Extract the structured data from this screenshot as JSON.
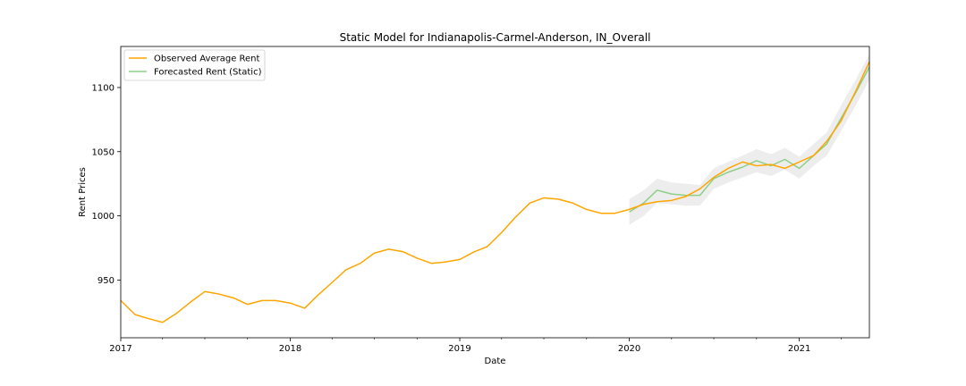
{
  "chart_data": {
    "type": "line",
    "title": "Static Model for Indianapolis-Carmel-Anderson, IN_Overall",
    "xlabel": "Date",
    "ylabel": "Rent Prices",
    "xlim": [
      "2017-01-01",
      "2021-06-01"
    ],
    "ylim": [
      905,
      1132
    ],
    "x_ticks": [
      "2017-01-01",
      "2018-01-01",
      "2019-01-01",
      "2020-01-01",
      "2021-01-01"
    ],
    "x_tick_labels": [
      "2017",
      "2018",
      "2019",
      "2020",
      "2021"
    ],
    "y_ticks": [
      950,
      1000,
      1050,
      1100
    ],
    "y_tick_labels": [
      "950",
      "1000",
      "1050",
      "1100"
    ],
    "grid": false,
    "legend": {
      "placement": "upper-left"
    },
    "series": [
      {
        "name": "Observed Average Rent",
        "color": "#ffa500",
        "x": [
          "2017-01-01",
          "2017-02-01",
          "2017-03-01",
          "2017-04-01",
          "2017-05-01",
          "2017-06-01",
          "2017-07-01",
          "2017-08-01",
          "2017-09-01",
          "2017-10-01",
          "2017-11-01",
          "2017-12-01",
          "2018-01-01",
          "2018-02-01",
          "2018-03-01",
          "2018-04-01",
          "2018-05-01",
          "2018-06-01",
          "2018-07-01",
          "2018-08-01",
          "2018-09-01",
          "2018-10-01",
          "2018-11-01",
          "2018-12-01",
          "2019-01-01",
          "2019-02-01",
          "2019-03-01",
          "2019-04-01",
          "2019-05-01",
          "2019-06-01",
          "2019-07-01",
          "2019-08-01",
          "2019-09-01",
          "2019-10-01",
          "2019-11-01",
          "2019-12-01",
          "2020-01-01",
          "2020-02-01",
          "2020-03-01",
          "2020-04-01",
          "2020-05-01",
          "2020-06-01",
          "2020-07-01",
          "2020-08-01",
          "2020-09-01",
          "2020-10-01",
          "2020-11-01",
          "2020-12-01",
          "2021-01-01",
          "2021-02-01",
          "2021-03-01",
          "2021-04-01",
          "2021-05-01",
          "2021-06-01"
        ],
        "values": [
          934,
          923,
          920,
          917,
          924,
          933,
          941,
          939,
          936,
          931,
          934,
          934,
          932,
          928,
          938,
          948,
          958,
          963,
          971,
          974,
          972,
          967,
          963,
          964,
          966,
          972,
          976,
          987,
          999,
          1010,
          1014,
          1013,
          1010,
          1005,
          1002,
          1002,
          1005,
          1009,
          1011,
          1012,
          1015,
          1021,
          1030,
          1037,
          1042,
          1039,
          1040,
          1037,
          1042,
          1047,
          1058,
          1074,
          1096,
          1120
        ]
      },
      {
        "name": "Forecasted Rent (Static)",
        "color": "#8fcf8a",
        "x": [
          "2020-01-01",
          "2020-02-01",
          "2020-03-01",
          "2020-04-01",
          "2020-05-01",
          "2020-06-01",
          "2020-07-01",
          "2020-08-01",
          "2020-09-01",
          "2020-10-01",
          "2020-11-01",
          "2020-12-01",
          "2021-01-01",
          "2021-02-01",
          "2021-03-01",
          "2021-04-01",
          "2021-05-01",
          "2021-06-01"
        ],
        "values": [
          1003,
          1010,
          1020,
          1017,
          1016,
          1016,
          1029,
          1034,
          1038,
          1043,
          1039,
          1044,
          1037,
          1047,
          1056,
          1076,
          1095,
          1116
        ],
        "ci_lower": [
          993,
          1000,
          1010,
          1009,
          1008,
          1008,
          1021,
          1026,
          1030,
          1034,
          1031,
          1036,
          1029,
          1039,
          1047,
          1066,
          1085,
          1106
        ],
        "ci_upper": [
          1013,
          1020,
          1029,
          1026,
          1025,
          1024,
          1037,
          1042,
          1047,
          1052,
          1048,
          1053,
          1046,
          1056,
          1065,
          1086,
          1105,
          1126
        ]
      }
    ]
  }
}
